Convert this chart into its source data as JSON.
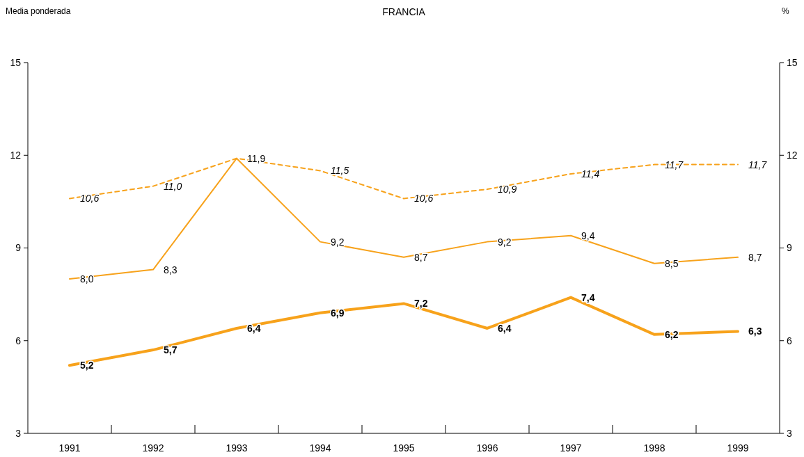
{
  "chart_data": {
    "type": "line",
    "title": "FRANCIA",
    "ylabel": "Media ponderada",
    "y2label": "%",
    "categories": [
      "1991",
      "1992",
      "1993",
      "1994",
      "1995",
      "1996",
      "1997",
      "1998",
      "1999"
    ],
    "series": [
      {
        "color": "#f7a21b",
        "line_style": "dashed",
        "values": [
          10.6,
          11.0,
          11.9,
          11.5,
          10.6,
          10.9,
          11.4,
          11.7,
          11.7
        ],
        "value_labels": [
          "10,6",
          "11,0",
          null,
          "11,5",
          "10,6",
          "10,9",
          "11,4",
          "11,7",
          "11,7"
        ]
      },
      {
        "color": "#f7a21b",
        "line_style": "solid",
        "values": [
          8.0,
          8.3,
          11.9,
          9.2,
          8.7,
          9.2,
          9.4,
          8.5,
          8.7
        ],
        "value_labels": [
          "8,0",
          "8,3",
          "11,9",
          "9,2",
          "8,7",
          "9,2",
          "9,4",
          "8,5",
          "8,7"
        ]
      },
      {
        "color": "#f7a21b",
        "line_style": "solid",
        "values": [
          5.2,
          5.7,
          6.4,
          6.9,
          7.2,
          6.4,
          7.4,
          6.2,
          6.3
        ],
        "value_labels": [
          "5,2",
          "5,7",
          "6,4",
          "6,9",
          "7,2",
          "6,4",
          "7,4",
          "6,2",
          "6,3"
        ]
      }
    ],
    "ylim": [
      3,
      15
    ],
    "yticks": [
      3,
      6,
      9,
      12,
      15
    ],
    "y2lim": [
      3,
      15
    ],
    "y2ticks": [
      3,
      6,
      9,
      12,
      15
    ],
    "grid": false,
    "marker": "none"
  }
}
